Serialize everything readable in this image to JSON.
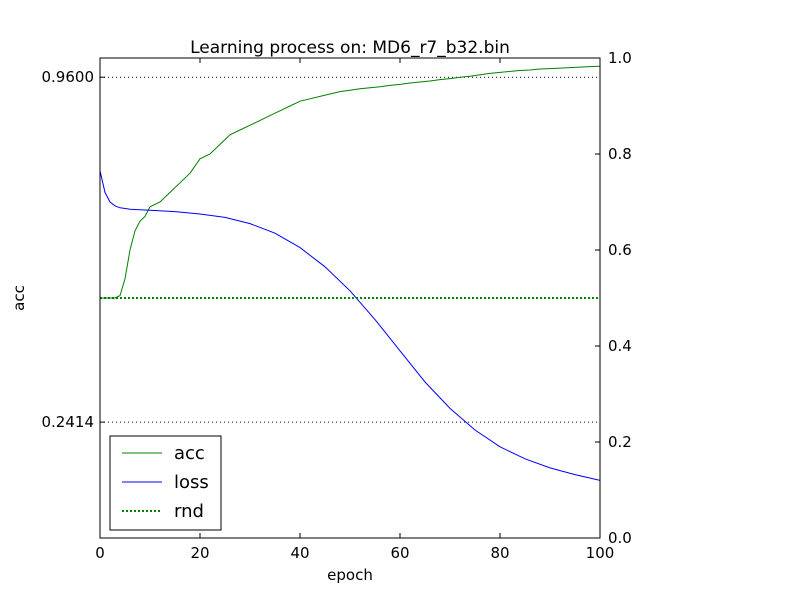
{
  "chart_data": {
    "type": "line",
    "title": "Learning process on: MD6_r7_b32.bin",
    "xlabel": "epoch",
    "ylabel": "acc",
    "xlim": [
      0,
      100
    ],
    "xticks": [
      "0",
      "20",
      "40",
      "60",
      "80",
      "100"
    ],
    "left_axis": {
      "label": "acc",
      "ticks": [
        "0.9600",
        "0.2414"
      ],
      "reference_lines": [
        0.96,
        0.2414
      ]
    },
    "right_axis": {
      "ylim": [
        0.0,
        1.0
      ],
      "ticks": [
        "0.0",
        "0.2",
        "0.4",
        "0.6",
        "0.8",
        "1.0"
      ]
    },
    "legend": {
      "placement": "lower-left",
      "entries": [
        {
          "label": "acc",
          "color": "#008000",
          "style": "solid"
        },
        {
          "label": "loss",
          "color": "#0000ff",
          "style": "solid"
        },
        {
          "label": "rnd",
          "color": "#008000",
          "style": "dotted"
        }
      ]
    },
    "series": [
      {
        "name": "acc",
        "axis": "right",
        "color": "#008000",
        "x": [
          0,
          3,
          4,
          5,
          6,
          7,
          8,
          9,
          10,
          12,
          14,
          16,
          18,
          20,
          22,
          24,
          26,
          28,
          30,
          32,
          34,
          36,
          38,
          40,
          42,
          44,
          46,
          48,
          50,
          52,
          54,
          56,
          58,
          60,
          62,
          64,
          66,
          68,
          70,
          72,
          74,
          76,
          78,
          80,
          82,
          84,
          86,
          88,
          90,
          92,
          94,
          96,
          98,
          100
        ],
        "values": [
          0.5,
          0.5,
          0.505,
          0.54,
          0.6,
          0.64,
          0.66,
          0.67,
          0.69,
          0.7,
          0.72,
          0.74,
          0.76,
          0.79,
          0.8,
          0.82,
          0.84,
          0.85,
          0.86,
          0.87,
          0.88,
          0.89,
          0.9,
          0.91,
          0.915,
          0.92,
          0.925,
          0.93,
          0.933,
          0.936,
          0.938,
          0.94,
          0.943,
          0.945,
          0.948,
          0.95,
          0.952,
          0.955,
          0.957,
          0.96,
          0.962,
          0.965,
          0.968,
          0.97,
          0.972,
          0.974,
          0.975,
          0.977,
          0.978,
          0.979,
          0.98,
          0.981,
          0.982,
          0.983
        ]
      },
      {
        "name": "loss",
        "axis": "right",
        "color": "#0000ff",
        "x": [
          0,
          1,
          2,
          3,
          4,
          6,
          8,
          10,
          15,
          20,
          25,
          30,
          35,
          40,
          45,
          50,
          55,
          60,
          65,
          70,
          75,
          80,
          85,
          90,
          95,
          100
        ],
        "values": [
          0.765,
          0.72,
          0.7,
          0.692,
          0.688,
          0.685,
          0.684,
          0.683,
          0.68,
          0.675,
          0.668,
          0.655,
          0.635,
          0.605,
          0.565,
          0.515,
          0.455,
          0.39,
          0.325,
          0.27,
          0.225,
          0.19,
          0.165,
          0.146,
          0.132,
          0.12
        ]
      },
      {
        "name": "rnd",
        "axis": "right",
        "color": "#008000",
        "style": "dotted",
        "x": [
          0,
          100
        ],
        "values": [
          0.5,
          0.5
        ]
      }
    ]
  }
}
